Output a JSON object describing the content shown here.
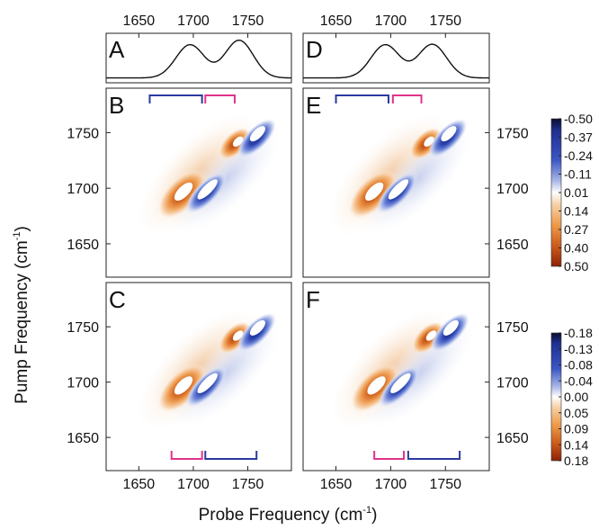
{
  "chart_data": [
    {
      "id": "A",
      "type": "line",
      "panel_label": "A",
      "xlim": [
        1620,
        1790
      ],
      "x_ticks": [
        1650,
        1700,
        1750
      ],
      "peaks": [
        {
          "center": 1697,
          "height": 0.82,
          "width": 13
        },
        {
          "center": 1742,
          "height": 0.93,
          "width": 13
        }
      ]
    },
    {
      "id": "D",
      "type": "line",
      "panel_label": "D",
      "xlim": [
        1620,
        1790
      ],
      "x_ticks": [
        1650,
        1700,
        1750
      ],
      "peaks": [
        {
          "center": 1695,
          "height": 0.82,
          "width": 13
        },
        {
          "center": 1738,
          "height": 0.83,
          "width": 13
        }
      ]
    },
    {
      "id": "B",
      "type": "heatmap",
      "panel_label": "B",
      "xlim": [
        1620,
        1790
      ],
      "ylim": [
        1620,
        1790
      ],
      "y_ticks": [
        1650,
        1700,
        1750
      ],
      "top_brackets": [
        {
          "color": "#2b3a9e",
          "from": 1660,
          "to": 1708
        },
        {
          "color": "#e0338a",
          "from": 1711,
          "to": 1738
        }
      ],
      "colorbar": {
        "min": -0.5,
        "max": 0.5,
        "labels": [
          "-0.50",
          "-0.37",
          "-0.24",
          "-0.11",
          "0.01",
          "0.14",
          "0.27",
          "0.40",
          "0.50"
        ]
      }
    },
    {
      "id": "E",
      "type": "heatmap",
      "panel_label": "E",
      "xlim": [
        1620,
        1790
      ],
      "ylim": [
        1620,
        1790
      ],
      "y_ticks": [
        1650,
        1700,
        1750
      ],
      "top_brackets": [
        {
          "color": "#2b3a9e",
          "from": 1650,
          "to": 1698
        },
        {
          "color": "#e0338a",
          "from": 1702,
          "to": 1728
        }
      ]
    },
    {
      "id": "C",
      "type": "heatmap",
      "panel_label": "C",
      "xlim": [
        1620,
        1790
      ],
      "ylim": [
        1620,
        1790
      ],
      "x_ticks": [
        1650,
        1700,
        1750
      ],
      "y_ticks": [
        1650,
        1700,
        1750
      ],
      "bottom_brackets": [
        {
          "color": "#e0338a",
          "from": 1680,
          "to": 1708
        },
        {
          "color": "#2b3a9e",
          "from": 1711,
          "to": 1758
        }
      ]
    },
    {
      "id": "F",
      "type": "heatmap",
      "panel_label": "F",
      "xlim": [
        1620,
        1790
      ],
      "ylim": [
        1620,
        1790
      ],
      "x_ticks": [
        1650,
        1700,
        1750
      ],
      "y_ticks": [
        1650,
        1700,
        1750
      ],
      "bottom_brackets": [
        {
          "color": "#e0338a",
          "from": 1685,
          "to": 1712
        },
        {
          "color": "#2b3a9e",
          "from": 1716,
          "to": 1763
        }
      ],
      "colorbar": {
        "min": -0.18,
        "max": 0.18,
        "labels": [
          "-0.18",
          "-0.13",
          "-0.08",
          "-0.04",
          "0.00",
          "0.05",
          "0.09",
          "0.14",
          "0.18"
        ]
      }
    }
  ],
  "axes": {
    "ylabel_main": "Pump Frequency (cm",
    "ylabel_sup": "-1",
    "ylabel_close": ")",
    "xlabel_main": "Probe Frequency (cm",
    "xlabel_sup": "-1",
    "xlabel_close": ")"
  },
  "colors": {
    "negative": "#1f2f8f",
    "positive": "#a8300a",
    "neutral": "#ffffff",
    "bracket_blue": "#2b3a9e",
    "bracket_pink": "#e0338a"
  }
}
